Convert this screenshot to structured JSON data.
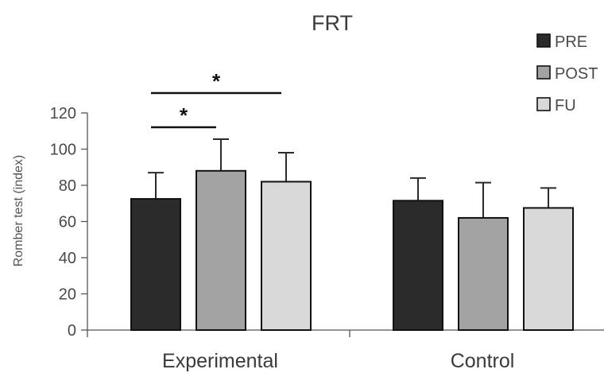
{
  "chart_data": {
    "type": "bar",
    "title": "FRT",
    "ylabel": "Romber test (index)",
    "xlabel": "",
    "ylim": [
      0,
      120
    ],
    "yticks": [
      0,
      20,
      40,
      60,
      80,
      100,
      120
    ],
    "categories": [
      "Experimental",
      "Control"
    ],
    "legend_position": "top-right",
    "series": [
      {
        "name": "PRE",
        "color": "#2b2b2b",
        "values": [
          72.5,
          71.5
        ],
        "errors": [
          14.5,
          12.5
        ]
      },
      {
        "name": "POST",
        "color": "#a3a3a3",
        "values": [
          88,
          62
        ],
        "errors": [
          17.5,
          19.5
        ]
      },
      {
        "name": "FU",
        "color": "#d9d9d9",
        "values": [
          82,
          67.5
        ],
        "errors": [
          16,
          11
        ]
      }
    ],
    "annotations": [
      {
        "category": "Experimental",
        "from_series": "PRE",
        "to_series": "POST",
        "label": "*"
      },
      {
        "category": "Experimental",
        "from_series": "PRE",
        "to_series": "FU",
        "label": "*"
      }
    ],
    "grid": false
  }
}
